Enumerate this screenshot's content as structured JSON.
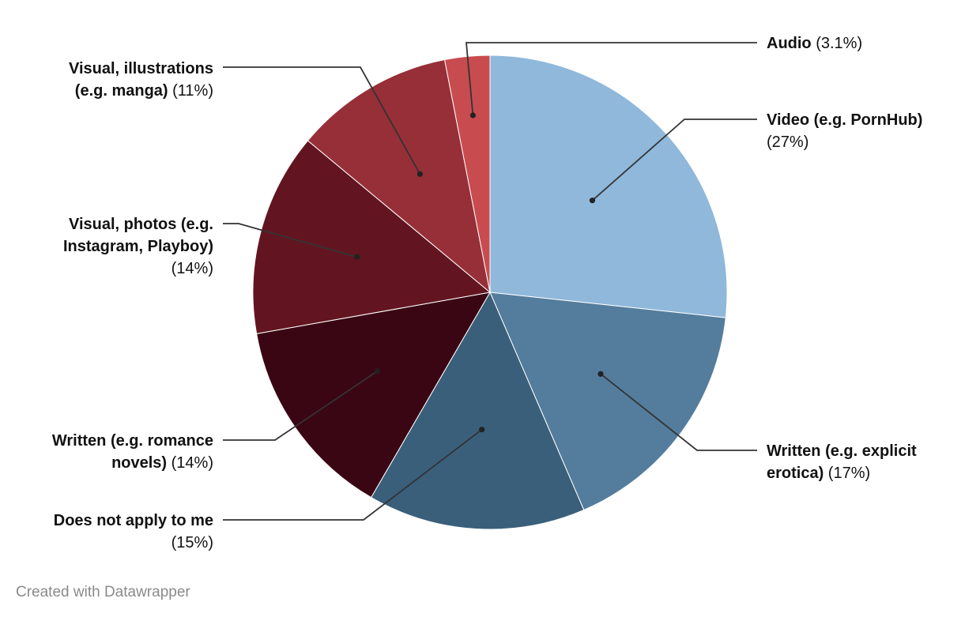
{
  "chart_data": {
    "type": "pie",
    "start_angle_deg": 0,
    "direction": "clockwise",
    "slices": [
      {
        "title": "Video (e.g. PornHub)",
        "label_lines": [
          [
            "Video (e.g. PornHub)",
            ""
          ],
          [
            "",
            "(27%)"
          ]
        ],
        "value": 27,
        "color": "#8fb8db",
        "side": "right"
      },
      {
        "title": "Written (e.g. explicit erotica)",
        "label_lines": [
          [
            "Written (e.g. explicit",
            ""
          ],
          [
            "erotica)",
            " (17%)"
          ]
        ],
        "value": 17,
        "color": "#547d9d",
        "side": "right"
      },
      {
        "title": "Does not apply to me",
        "label_lines": [
          [
            "Does not apply to me",
            ""
          ],
          [
            "",
            "(15%)"
          ]
        ],
        "value": 15,
        "color": "#3a5f7a",
        "side": "left"
      },
      {
        "title": "Written (e.g. romance novels)",
        "label_lines": [
          [
            "Written (e.g. romance",
            ""
          ],
          [
            "novels)",
            " (14%)"
          ]
        ],
        "value": 14,
        "color": "#3b0613",
        "side": "left"
      },
      {
        "title": "Visual, photos (e.g. Instagram, Playboy)",
        "label_lines": [
          [
            "Visual, photos (e.g.",
            ""
          ],
          [
            "Instagram, Playboy)",
            ""
          ],
          [
            "",
            "(14%)"
          ]
        ],
        "value": 14,
        "color": "#621520",
        "side": "left"
      },
      {
        "title": "Visual, illustrations (e.g. manga)",
        "label_lines": [
          [
            "Visual, illustrations",
            ""
          ],
          [
            "(e.g. manga)",
            " (11%)"
          ]
        ],
        "value": 11,
        "color": "#972f38",
        "side": "left"
      },
      {
        "title": "Audio",
        "label_lines": [
          [
            "Audio",
            " (3.1%)"
          ]
        ],
        "value": 3.1,
        "color": "#c84c4f",
        "side": "right"
      }
    ]
  },
  "footer": {
    "credit": "Created with Datawrapper"
  }
}
